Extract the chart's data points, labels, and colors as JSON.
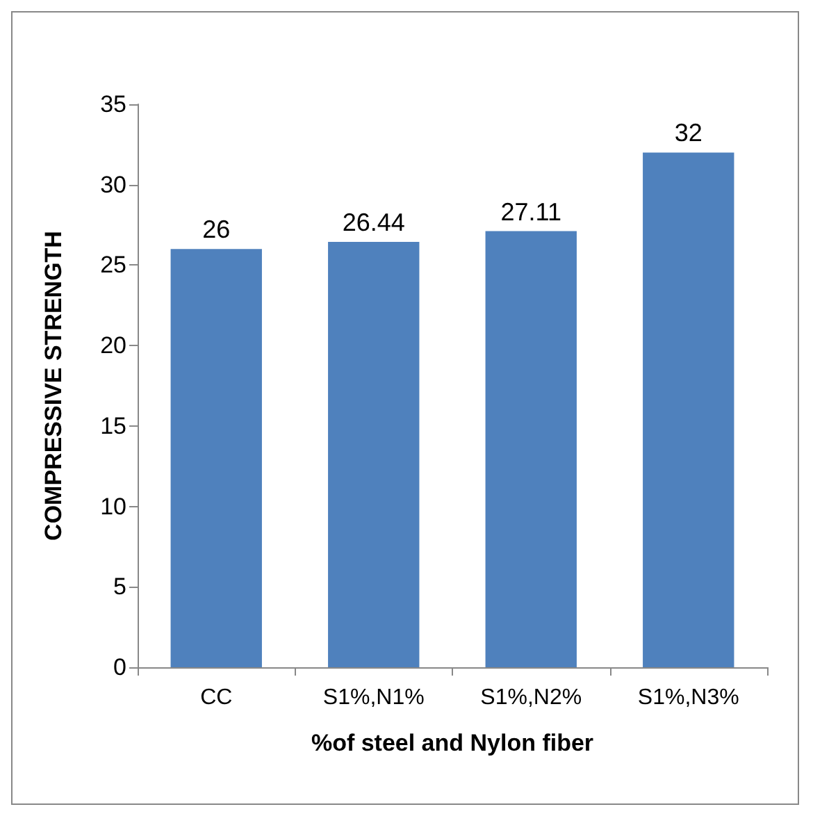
{
  "chart_data": {
    "type": "bar",
    "xlabel": "%of steel and Nylon fiber",
    "ylabel": "COMPRESSIVE STRENGTH",
    "categories": [
      "CC",
      "S1%,N1%",
      "S1%,N2%",
      "S1%,N3%"
    ],
    "values": [
      26,
      26.44,
      27.11,
      32
    ],
    "color": "#4f81bd",
    "ylim": [
      0,
      35
    ],
    "yticks": [
      0,
      5,
      10,
      15,
      20,
      25,
      30,
      35
    ],
    "data_labels": true,
    "grid": false
  }
}
